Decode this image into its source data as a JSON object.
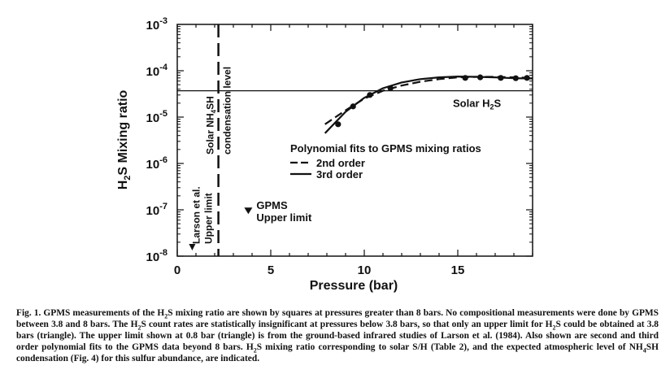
{
  "chart_data": {
    "type": "line",
    "xlabel": "Pressure (bar)",
    "ylabel": "H2S Mixing ratio",
    "xlim": [
      0,
      19
    ],
    "ylim_log10": [
      -8,
      -3
    ],
    "yscale": "log",
    "x_ticks": [
      0,
      5,
      10,
      15
    ],
    "x_tick_labels": [
      "0",
      "5",
      "10",
      "15"
    ],
    "y_ticks_exp": [
      -8,
      -7,
      -6,
      -5,
      -4,
      -3
    ],
    "y_tick_base": "10",
    "grid": false,
    "legend": {
      "title": "Polynomial fits to GPMS mixing ratios",
      "entries": [
        "2nd order",
        "3rd order"
      ]
    },
    "measurements": {
      "x": [
        8.6,
        9.4,
        10.3,
        11.4,
        15.4,
        16.2,
        17.3,
        18.1,
        18.7
      ],
      "y": [
        7e-06,
        1.7e-05,
        3e-05,
        4.2e-05,
        7e-05,
        7.2e-05,
        7e-05,
        6.9e-05,
        7e-05
      ]
    },
    "series": [
      {
        "name": "2nd order",
        "style": "dashed",
        "x": [
          7.9,
          9,
          10,
          11,
          12,
          13,
          14,
          15,
          16,
          17,
          18,
          19
        ],
        "y": [
          7e-06,
          1.4e-05,
          2.5e-05,
          3.7e-05,
          4.8e-05,
          5.8e-05,
          6.6e-05,
          7.2e-05,
          7.4e-05,
          7.4e-05,
          7.2e-05,
          7e-05
        ]
      },
      {
        "name": "3rd order",
        "style": "solid",
        "x": [
          7.9,
          9,
          10,
          11,
          12,
          13,
          14,
          15,
          16,
          17,
          18,
          19
        ],
        "y": [
          4.5e-06,
          1.3e-05,
          2.6e-05,
          4.2e-05,
          5.6e-05,
          6.6e-05,
          7.2e-05,
          7.5e-05,
          7.4e-05,
          7.2e-05,
          6.9e-05,
          6.8e-05
        ]
      }
    ],
    "solar_h2s": {
      "y": 3.7e-05,
      "label": "Solar H",
      "label_sub": "2",
      "label_end": "S"
    },
    "nh4sh_condensation": {
      "x": 2.2,
      "label_lines": [
        "Solar NH",
        "4",
        "SH",
        "condensation level"
      ]
    },
    "gpms_upper_limit": {
      "x": 3.8,
      "y": 9.5e-08,
      "label_lines": [
        "GPMS",
        "Upper limit"
      ]
    },
    "larson_upper_limit": {
      "x": 0.8,
      "y": 1.5e-08,
      "label_lines": [
        "Larson et al.",
        "Upper limit"
      ]
    }
  },
  "caption": {
    "lead": "Fig. 1.",
    "parts": [
      " GPMS measurements of the H",
      "2",
      "S mixing ratio are shown by squares at pressures greater than 8 bars. No compositional measurements were done by GPMS between 3.8 and 8 bars. The H",
      "2",
      "S count rates are statistically insignificant at pressures below 3.8 bars, so that only an upper limit for H",
      "2",
      "S could be obtained at 3.8 bars (triangle). The upper limit shown at 0.8 bar (triangle) is from the ground-based infrared studies of Larson et al. (1984). Also shown are second and third order polynomial fits to the GPMS data beyond 8 bars. H",
      "2",
      "S mixing ratio corresponding to solar S/H (Table 2), and the expected atmospheric level of NH",
      "4",
      "SH condensation (Fig. 4) for this sulfur abundance, are indicated."
    ]
  }
}
